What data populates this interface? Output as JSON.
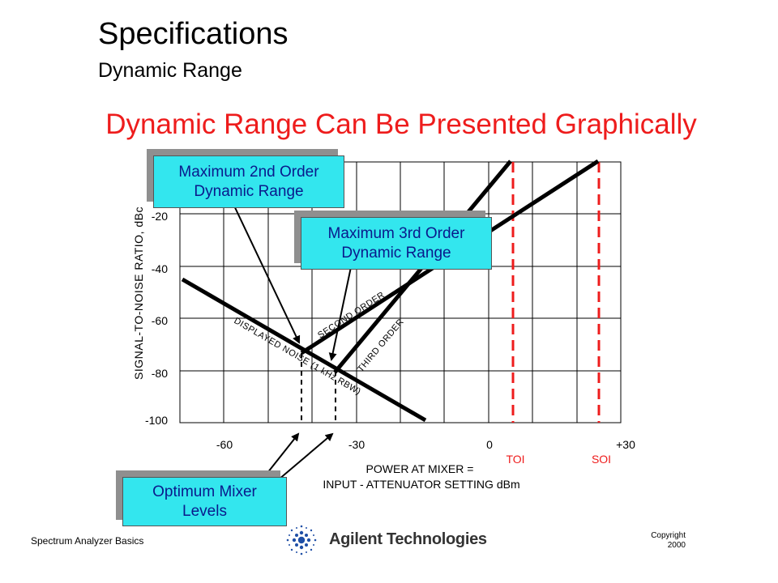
{
  "header": {
    "title": "Specifications",
    "subtitle": "Dynamic Range"
  },
  "headline": "Dynamic Range Can Be Presented Graphically",
  "chart": {
    "ylabel": "SIGNAL-TO-NOISE  RATIO, dBc",
    "yticks": [
      "-20",
      "-40",
      "-60",
      "-80",
      "-100"
    ],
    "xticks": [
      "-60",
      "-30",
      "0",
      "+30"
    ],
    "xlabel_line1": "POWER AT MIXER =",
    "xlabel_line2": "INPUT - ATTENUATOR SETTING dBm",
    "toi_label": "TOI",
    "soi_label": "SOI",
    "line_labels": {
      "displayed_noise": "DISPLAYED NOISE (1 kHz RBW)",
      "second_order": "SECOND ORDER",
      "third_order": "THIRD ORDER"
    }
  },
  "callouts": {
    "max2_line1": "Maximum 2nd Order",
    "max2_line2": "Dynamic Range",
    "max3_line1": "Maximum 3rd Order",
    "max3_line2": "Dynamic Range",
    "opt_line1": "Optimum Mixer",
    "opt_line2": "Levels"
  },
  "footer": {
    "left": "Spectrum Analyzer Basics",
    "copyright_line1": "Copyright",
    "copyright_line2": "2000",
    "logo_text": "Agilent Technologies"
  },
  "colors": {
    "headline": "#ee1c1c",
    "callout_fill": "#33e6ee",
    "callout_text": "#0a1a8c",
    "marker": "#ee1c1c",
    "logo_blue": "#1f4fa6"
  }
}
